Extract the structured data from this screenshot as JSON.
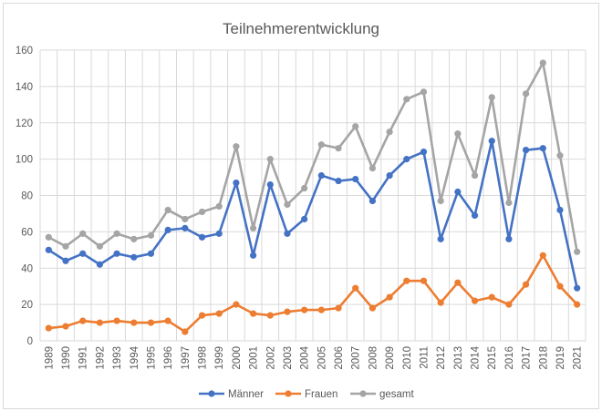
{
  "chart_data": {
    "type": "line",
    "title": "Teilnehmerentwicklung",
    "xlabel": "",
    "ylabel": "",
    "ylim": [
      0,
      160
    ],
    "yticks": [
      0,
      20,
      40,
      60,
      80,
      100,
      120,
      140,
      160
    ],
    "grid": true,
    "legend_position": "bottom",
    "categories": [
      "1989",
      "1990",
      "1991",
      "1992",
      "1993",
      "1994",
      "1995",
      "1996",
      "1997",
      "1998",
      "1999",
      "2000",
      "2001",
      "2002",
      "2003",
      "2004",
      "2005",
      "2006",
      "2007",
      "2008",
      "2009",
      "2010",
      "2011",
      "2012",
      "2013",
      "2014",
      "2015",
      "2016",
      "2017",
      "2018",
      "2019",
      "2021"
    ],
    "series": [
      {
        "name": "Männer",
        "color": "#4472c4",
        "values": [
          50,
          44,
          48,
          42,
          48,
          46,
          48,
          61,
          62,
          57,
          59,
          87,
          47,
          86,
          59,
          67,
          91,
          88,
          89,
          77,
          91,
          100,
          104,
          56,
          82,
          69,
          110,
          56,
          105,
          106,
          72,
          29
        ]
      },
      {
        "name": "Frauen",
        "color": "#ed7d31",
        "values": [
          7,
          8,
          11,
          10,
          11,
          10,
          10,
          11,
          5,
          14,
          15,
          20,
          15,
          14,
          16,
          17,
          17,
          18,
          29,
          18,
          24,
          33,
          33,
          21,
          32,
          22,
          24,
          20,
          31,
          47,
          30,
          20
        ]
      },
      {
        "name": "gesamt",
        "color": "#a5a5a5",
        "values": [
          57,
          52,
          59,
          52,
          59,
          56,
          58,
          72,
          67,
          71,
          74,
          107,
          62,
          100,
          75,
          84,
          108,
          106,
          118,
          95,
          115,
          133,
          137,
          77,
          114,
          91,
          134,
          76,
          136,
          153,
          102,
          49
        ]
      }
    ]
  }
}
